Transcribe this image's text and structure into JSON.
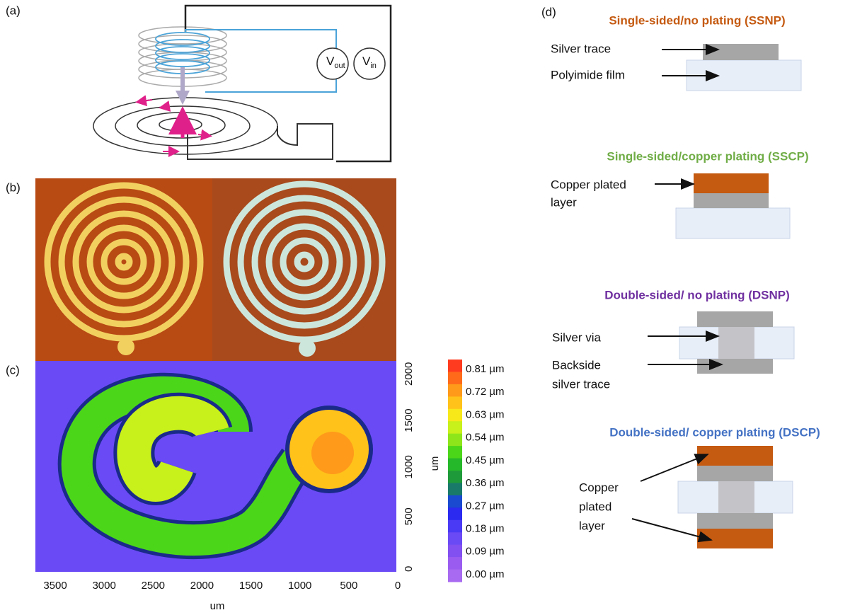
{
  "panel_a": {
    "label": "(a)",
    "vout": {
      "symbol": "V",
      "subscript": "out"
    },
    "vin": {
      "symbol": "V",
      "subscript": "in"
    }
  },
  "panel_b": {
    "label": "(b)"
  },
  "panel_c": {
    "label": "(c)",
    "x_ticks": [
      "3500",
      "3000",
      "2500",
      "2000",
      "1500",
      "1000",
      "500",
      "0"
    ],
    "x_label": "um",
    "y_ticks": [
      "0",
      "500",
      "1000",
      "1500",
      "2000"
    ],
    "y_label": "um",
    "colorbar": {
      "labels": [
        "0.81 µm",
        "0.72 µm",
        "0.63 µm",
        "0.54 µm",
        "0.45 µm",
        "0.36 µm",
        "0.27 µm",
        "0.18 µm",
        "0.09 µm",
        "0.00 µm"
      ],
      "colors": [
        "#ff3b1f",
        "#ff6a1a",
        "#ff9a1a",
        "#ffc21a",
        "#f7e81a",
        "#c8f01a",
        "#8ee61a",
        "#4cd61a",
        "#25b82a",
        "#1f9a3a",
        "#1a7a6a",
        "#1a4ad0",
        "#2a2af0",
        "#4a3af5",
        "#6a4af5",
        "#8250f0",
        "#9a5cf0",
        "#a86af0"
      ]
    }
  },
  "panel_d": {
    "label": "(d)",
    "ssnp": {
      "title": "Single-sided/no plating (SSNP)",
      "silver_trace": "Silver trace",
      "polyimide": "Polyimide film"
    },
    "sscp": {
      "title": "Single-sided/copper plating (SSCP)",
      "copper_line1": "Copper plated",
      "copper_line2": "layer"
    },
    "dsnp": {
      "title": "Double-sided/ no plating (DSNP)",
      "silver_via": "Silver via",
      "backside_line1": "Backside",
      "backside_line2": "silver trace"
    },
    "dscp": {
      "title": "Double-sided/ copper plating (DSCP)",
      "copper_line1": "Copper",
      "copper_line2": "plated",
      "copper_line3": "layer"
    }
  }
}
